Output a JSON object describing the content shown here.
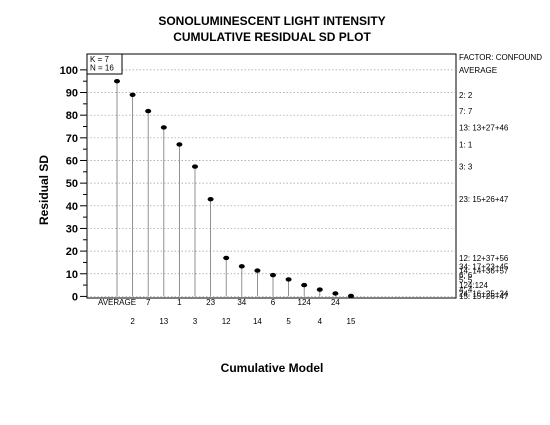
{
  "chart_data": {
    "type": "scatter",
    "style": "vertical-lines-with-dots",
    "title": "SONOLUMINESCENT LIGHT INTENSITY",
    "subtitle": "CUMULATIVE RESIDUAL SD PLOT",
    "xlabel": "Cumulative Model",
    "ylabel": "Residual SD",
    "ylim": [
      -0.7,
      107
    ],
    "yticks": [
      0,
      10,
      20,
      30,
      40,
      50,
      60,
      70,
      80,
      90,
      100
    ],
    "grid": true,
    "box_text": [
      "K = 7",
      "N = 16"
    ],
    "factor_label": "FACTOR: CONFOUND",
    "categories": [
      "AVERAGE",
      "2",
      "7",
      "13",
      "1",
      "3",
      "23",
      "12",
      "34",
      "14",
      "6",
      "5",
      "124",
      "4",
      "24",
      "15"
    ],
    "values": [
      95.0,
      89.0,
      81.8,
      74.6,
      67.1,
      57.3,
      42.9,
      17.0,
      13.3,
      11.4,
      9.4,
      7.5,
      5.0,
      3.0,
      1.3,
      0.2
    ],
    "right_labels": [
      {
        "value": 100,
        "text": "AVERAGE"
      },
      {
        "value": 89,
        "text": "2:  2"
      },
      {
        "value": 81.8,
        "text": "7:  7"
      },
      {
        "value": 74.6,
        "text": "13:  13+27+46"
      },
      {
        "value": 67.1,
        "text": "1:  1"
      },
      {
        "value": 57.3,
        "text": "3:  3"
      },
      {
        "value": 42.9,
        "text": "23:  15+26+47"
      },
      {
        "value": 17.0,
        "text": "12:  12+37+56"
      },
      {
        "value": 13.3,
        "text": "34:  17+23+45"
      },
      {
        "value": 11.4,
        "text": "14:  14+36+57"
      },
      {
        "value": 9.4,
        "text": "6:  6"
      },
      {
        "value": 7.5,
        "text": "5:  5"
      },
      {
        "value": 5.0,
        "text": "124:124"
      },
      {
        "value": 3.0,
        "text": "4:  4"
      },
      {
        "value": 1.3,
        "text": "24:  16+25+34"
      },
      {
        "value": 0.2,
        "text": "15:  15+26+47"
      }
    ]
  }
}
